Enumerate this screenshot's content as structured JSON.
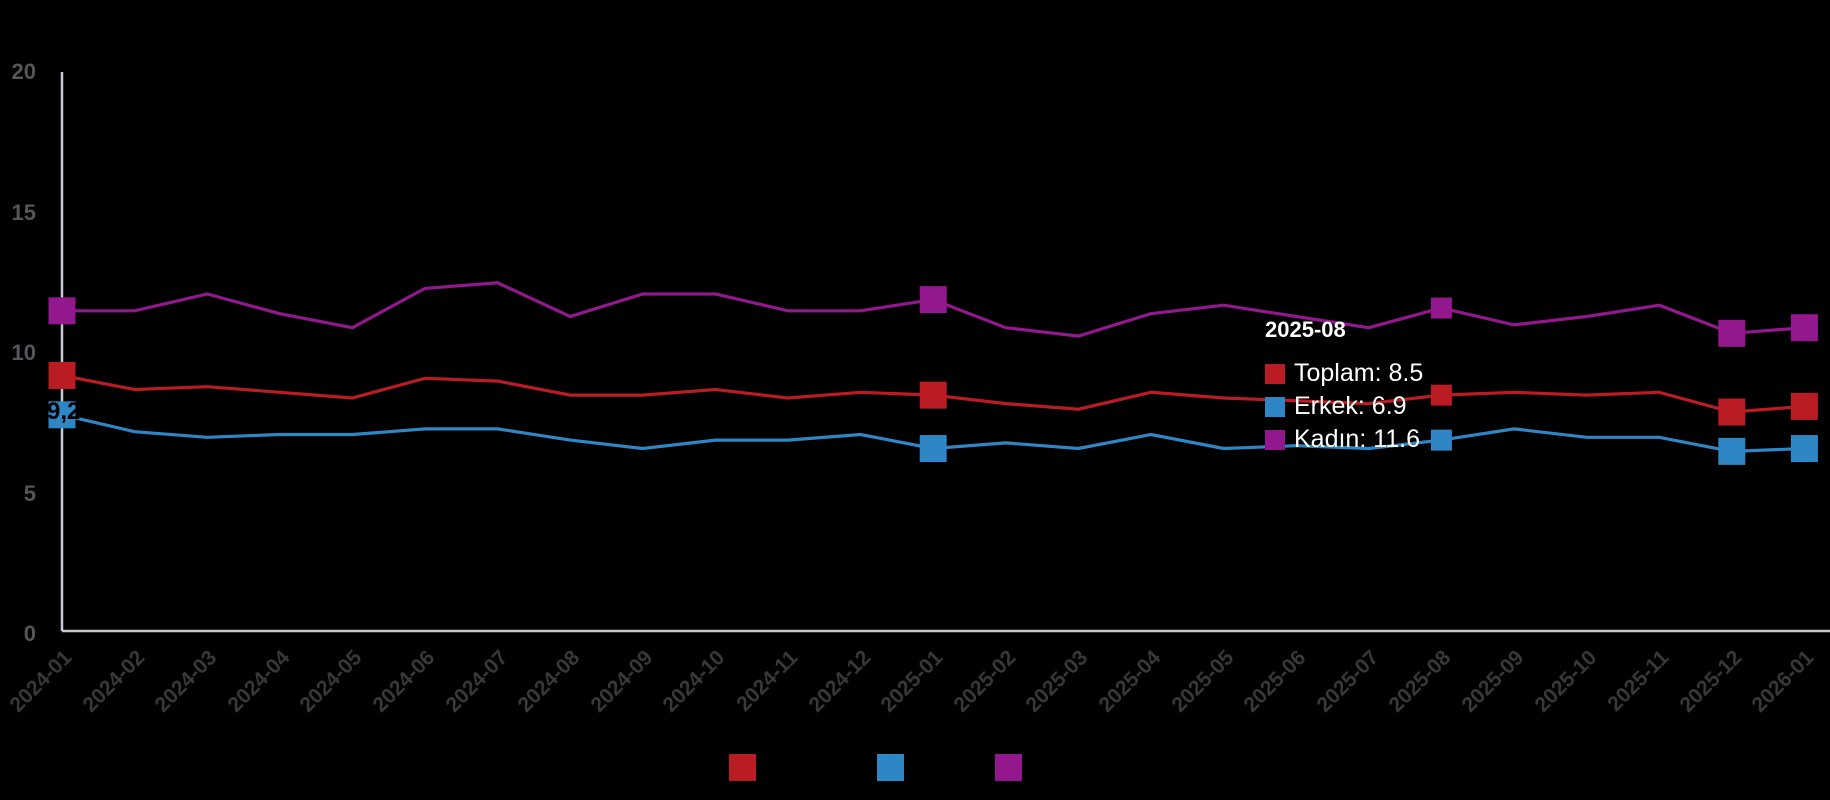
{
  "background_color": "#000000",
  "chart_data": {
    "type": "line",
    "x": [
      "2024-01",
      "2024-02",
      "2024-03",
      "2024-04",
      "2024-05",
      "2024-06",
      "2024-07",
      "2024-08",
      "2024-09",
      "2024-10",
      "2024-11",
      "2024-12",
      "2025-01",
      "2025-02",
      "2025-03",
      "2025-04",
      "2025-05",
      "2025-06",
      "2025-07",
      "2025-08",
      "2025-09",
      "2025-10",
      "2025-11",
      "2025-12",
      "2026-01"
    ],
    "series": [
      {
        "name": "Toplam",
        "color": "#b91d23",
        "values": [
          9.2,
          8.7,
          8.8,
          8.6,
          8.4,
          9.1,
          9.0,
          8.5,
          8.5,
          8.7,
          8.4,
          8.6,
          8.5,
          8.2,
          8.0,
          8.6,
          8.4,
          8.3,
          8.2,
          8.5,
          8.6,
          8.5,
          8.6,
          7.9,
          8.1
        ]
      },
      {
        "name": "Erkek",
        "color": "#2e86c5",
        "values": [
          7.8,
          7.2,
          7.0,
          7.1,
          7.1,
          7.3,
          7.3,
          6.9,
          6.6,
          6.9,
          6.9,
          7.1,
          6.6,
          6.8,
          6.6,
          7.1,
          6.6,
          6.7,
          6.6,
          6.9,
          7.3,
          7.0,
          7.0,
          6.5,
          6.6
        ]
      },
      {
        "name": "Kadın",
        "color": "#93188e",
        "values": [
          11.5,
          11.5,
          12.1,
          11.4,
          10.9,
          12.3,
          12.5,
          11.3,
          12.1,
          12.1,
          11.5,
          11.5,
          11.9,
          10.9,
          10.6,
          11.4,
          11.7,
          11.3,
          10.9,
          11.6,
          11.0,
          11.3,
          11.7,
          10.7,
          10.9
        ]
      }
    ],
    "marker_indices": [
      0,
      12,
      23,
      24
    ],
    "highlight_index": 19,
    "ylim": [
      0,
      20
    ],
    "yticks": [
      0,
      5,
      10,
      15,
      20
    ],
    "grid": false,
    "legend_position": "bottom",
    "axis_color": "#c6c8d4",
    "y_label_color": "#55565a",
    "x_label_color": "#38383b",
    "first_point_label": {
      "series": "Toplam",
      "text": "9,2"
    }
  },
  "tooltip": {
    "title": "2025-08",
    "rows": [
      {
        "label": "Toplam",
        "value": "8.5",
        "text": "Toplam: 8.5",
        "color": "#b91d23"
      },
      {
        "label": "Erkek",
        "value": "6.9",
        "text": "Erkek: 6.9",
        "color": "#2e86c5"
      },
      {
        "label": "Kadın",
        "value": "11.6",
        "text": "Kadın: 11.6",
        "color": "#93188e"
      }
    ]
  },
  "legend": {
    "items": [
      {
        "label": "Toplam",
        "color": "#b91d23",
        "text_color": "#000000"
      },
      {
        "label": "Erkek",
        "color": "#2e86c5",
        "text_color": "#000000"
      },
      {
        "label": "Kadın",
        "color": "#93188e",
        "text_color": "#000000"
      }
    ]
  }
}
